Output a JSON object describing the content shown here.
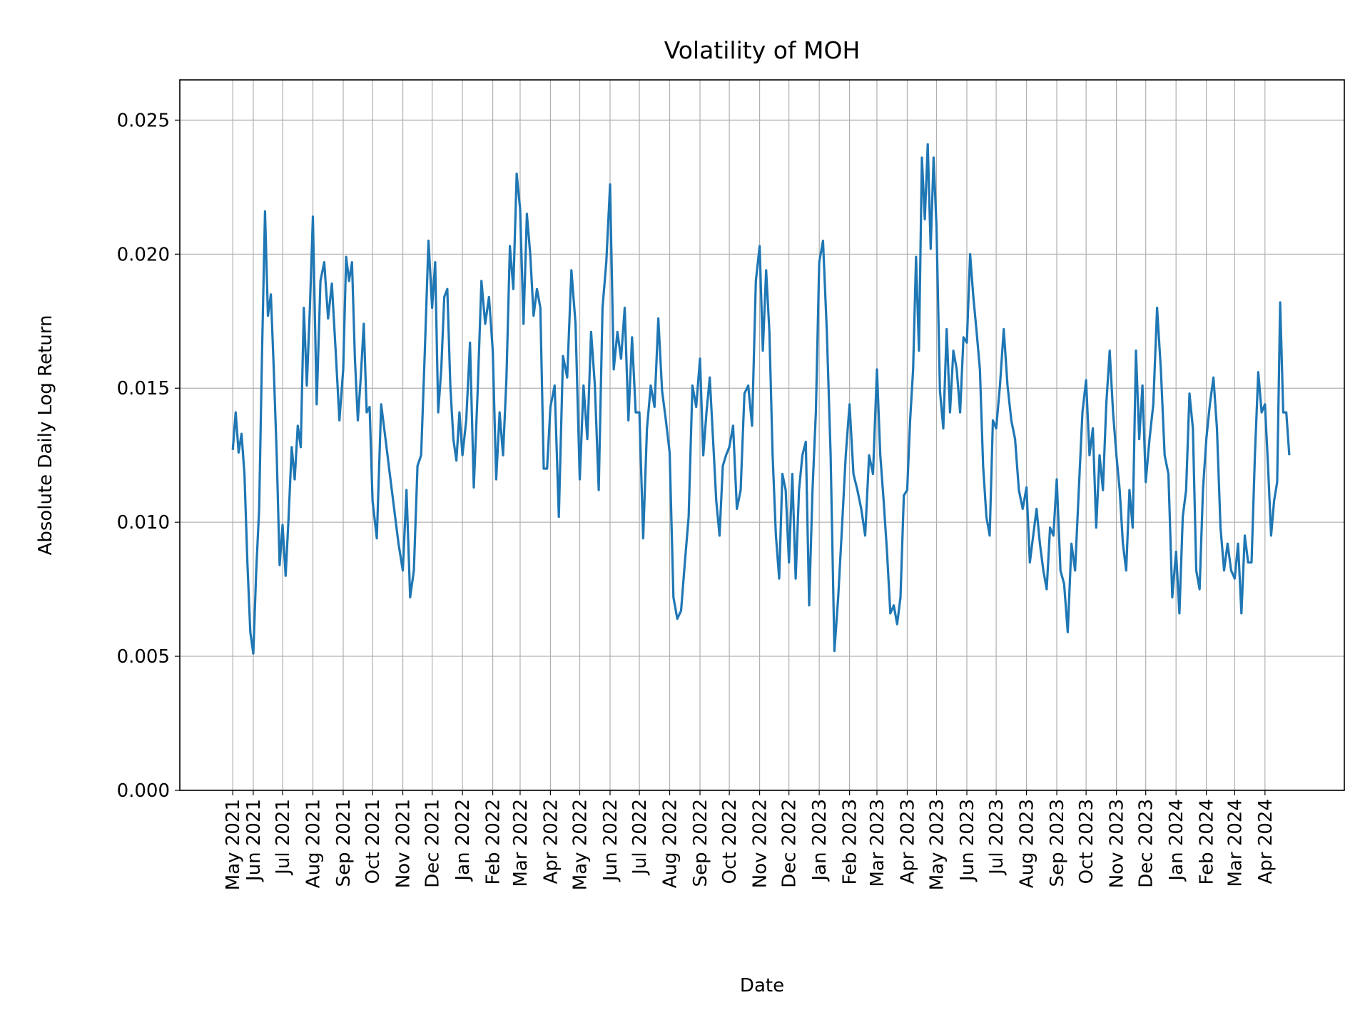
{
  "chart_data": {
    "type": "line",
    "title": "Volatility of MOH",
    "xlabel": "Date",
    "ylabel": "Absolute Daily Log Return",
    "ylim": [
      0,
      0.0265
    ],
    "yticks": [
      "0.000",
      "0.005",
      "0.010",
      "0.015",
      "0.020",
      "0.025"
    ],
    "xticks": [
      "May 2021",
      "Jun 2021",
      "Jul 2021",
      "Aug 2021",
      "Sep 2021",
      "Oct 2021",
      "Nov 2021",
      "Dec 2021",
      "Jan 2022",
      "Feb 2022",
      "Mar 2022",
      "Apr 2022",
      "May 2022",
      "Jun 2022",
      "Jul 2022",
      "Aug 2022",
      "Sep 2022",
      "Oct 2022",
      "Nov 2022",
      "Dec 2022",
      "Jan 2023",
      "Feb 2023",
      "Mar 2023",
      "Apr 2023",
      "May 2023",
      "Jun 2023",
      "Jul 2023",
      "Aug 2023",
      "Sep 2023",
      "Oct 2023",
      "Nov 2023",
      "Dec 2023",
      "Jan 2024",
      "Feb 2024",
      "Mar 2024",
      "Apr 2024"
    ],
    "grid": true,
    "line_color": "#1f77b4",
    "series_by_month": [
      {
        "month": "2021-05",
        "values": [
          0.0127,
          0.0141,
          0.0126,
          0.0133,
          0.0118,
          0.0085,
          0.0059
        ]
      },
      {
        "month": "2021-06",
        "values": [
          0.0051,
          0.0082,
          0.0105,
          0.0164,
          0.0216,
          0.0177,
          0.0185,
          0.0157,
          0.0125,
          0.0084
        ]
      },
      {
        "month": "2021-07",
        "values": [
          0.0099,
          0.008,
          0.0102,
          0.0128,
          0.0116,
          0.0136,
          0.0128,
          0.018,
          0.0151,
          0.018
        ]
      },
      {
        "month": "2021-08",
        "values": [
          0.0214,
          0.0144,
          0.019,
          0.0197,
          0.0176,
          0.0189,
          0.0164,
          0.0138
        ]
      },
      {
        "month": "2021-09",
        "values": [
          0.0157,
          0.0199,
          0.019,
          0.0197,
          0.0161,
          0.0138,
          0.0154,
          0.0174,
          0.0141,
          0.0143
        ]
      },
      {
        "month": "2021-10",
        "values": [
          0.0108,
          0.0094,
          0.0144,
          0.0131,
          0.0118,
          0.0105,
          0.0092
        ]
      },
      {
        "month": "2021-11",
        "values": [
          0.0082,
          0.0112,
          0.0072,
          0.0082,
          0.0121,
          0.0125,
          0.0164,
          0.0205
        ]
      },
      {
        "month": "2021-12",
        "values": [
          0.018,
          0.0197,
          0.0141,
          0.0157,
          0.0184,
          0.0187,
          0.0151,
          0.0131,
          0.0123,
          0.0141
        ]
      },
      {
        "month": "2022-01",
        "values": [
          0.0125,
          0.0138,
          0.0167,
          0.0113,
          0.0148,
          0.019,
          0.0174,
          0.0184
        ]
      },
      {
        "month": "2022-02",
        "values": [
          0.0164,
          0.0116,
          0.0141,
          0.0125,
          0.0154,
          0.0203,
          0.0187,
          0.023
        ]
      },
      {
        "month": "2022-03",
        "values": [
          0.0217,
          0.0174,
          0.0215,
          0.02,
          0.0177,
          0.0187,
          0.018,
          0.012,
          0.012
        ]
      },
      {
        "month": "2022-04",
        "values": [
          0.0143,
          0.0151,
          0.0102,
          0.0162,
          0.0154,
          0.0194,
          0.0174
        ]
      },
      {
        "month": "2022-05",
        "values": [
          0.0116,
          0.0151,
          0.0131,
          0.0171,
          0.0151,
          0.0112,
          0.018,
          0.0197
        ]
      },
      {
        "month": "2022-06",
        "values": [
          0.0226,
          0.0157,
          0.0171,
          0.0161,
          0.018,
          0.0138,
          0.0169,
          0.0141
        ]
      },
      {
        "month": "2022-07",
        "values": [
          0.0141,
          0.0094,
          0.0135,
          0.0151,
          0.0143,
          0.0176,
          0.0149,
          0.0138
        ]
      },
      {
        "month": "2022-08",
        "values": [
          0.0126,
          0.0072,
          0.0064,
          0.0067,
          0.0085,
          0.0102,
          0.0151,
          0.0143
        ]
      },
      {
        "month": "2022-09",
        "values": [
          0.0161,
          0.0125,
          0.0141,
          0.0154,
          0.0131,
          0.0108,
          0.0095,
          0.0121,
          0.0125
        ]
      },
      {
        "month": "2022-10",
        "values": [
          0.0128,
          0.0136,
          0.0105,
          0.0112,
          0.0148,
          0.0151,
          0.0136,
          0.019
        ]
      },
      {
        "month": "2022-11",
        "values": [
          0.0203,
          0.0164,
          0.0194,
          0.0171,
          0.0125,
          0.0095,
          0.0079,
          0.0118,
          0.0112
        ]
      },
      {
        "month": "2022-12",
        "values": [
          0.0085,
          0.0118,
          0.0079,
          0.0112,
          0.0125,
          0.013,
          0.0069,
          0.0112,
          0.0141
        ]
      },
      {
        "month": "2023-01",
        "values": [
          0.0197,
          0.0205,
          0.0171,
          0.0125,
          0.0052,
          0.0072,
          0.0098,
          0.0125
        ]
      },
      {
        "month": "2023-02",
        "values": [
          0.0144,
          0.0118,
          0.0112,
          0.0105,
          0.0095,
          0.0125,
          0.0118
        ]
      },
      {
        "month": "2023-03",
        "values": [
          0.0157,
          0.0125,
          0.0108,
          0.0089,
          0.0066,
          0.0069,
          0.0062,
          0.0072,
          0.011
        ]
      },
      {
        "month": "2023-04",
        "values": [
          0.0112,
          0.0138,
          0.0157,
          0.0199,
          0.0164,
          0.0236,
          0.0213,
          0.0241,
          0.0202,
          0.0236
        ]
      },
      {
        "month": "2023-05",
        "values": [
          0.021,
          0.0149,
          0.0135,
          0.0172,
          0.0141,
          0.0164,
          0.0157,
          0.0141,
          0.0169
        ]
      },
      {
        "month": "2023-06",
        "values": [
          0.0167,
          0.02,
          0.0184,
          0.0171,
          0.0157,
          0.0121,
          0.0102,
          0.0095,
          0.0138
        ]
      },
      {
        "month": "2023-07",
        "values": [
          0.0135,
          0.0151,
          0.0172,
          0.0151,
          0.0138,
          0.0131,
          0.0112,
          0.0105
        ]
      },
      {
        "month": "2023-08",
        "values": [
          0.0113,
          0.0085,
          0.0095,
          0.0105,
          0.0092,
          0.0082,
          0.0075,
          0.0098,
          0.0095
        ]
      },
      {
        "month": "2023-09",
        "values": [
          0.0116,
          0.0082,
          0.0077,
          0.0059,
          0.0092,
          0.0082,
          0.0112,
          0.0141
        ]
      },
      {
        "month": "2023-10",
        "values": [
          0.0153,
          0.0125,
          0.0135,
          0.0098,
          0.0125,
          0.0112,
          0.0144,
          0.0164,
          0.0141
        ]
      },
      {
        "month": "2023-11",
        "values": [
          0.0125,
          0.0112,
          0.0092,
          0.0082,
          0.0112,
          0.0098,
          0.0164,
          0.0131,
          0.0151
        ]
      },
      {
        "month": "2023-12",
        "values": [
          0.0115,
          0.0131,
          0.0144,
          0.018,
          0.0157,
          0.0125,
          0.0118,
          0.0072
        ]
      },
      {
        "month": "2024-01",
        "values": [
          0.0089,
          0.0066,
          0.0102,
          0.0112,
          0.0148,
          0.0135,
          0.0082,
          0.0075,
          0.0112
        ]
      },
      {
        "month": "2024-02",
        "values": [
          0.0131,
          0.0144,
          0.0154,
          0.0135,
          0.0098,
          0.0082,
          0.0092,
          0.0082
        ]
      },
      {
        "month": "2024-03",
        "values": [
          0.0079,
          0.0092,
          0.0066,
          0.0095,
          0.0085,
          0.0085,
          0.0125,
          0.0156,
          0.0141
        ]
      },
      {
        "month": "2024-04",
        "values": [
          0.0144,
          0.0121,
          0.0095,
          0.0108,
          0.0115,
          0.0182,
          0.0141,
          0.0141,
          0.0125
        ]
      }
    ]
  }
}
